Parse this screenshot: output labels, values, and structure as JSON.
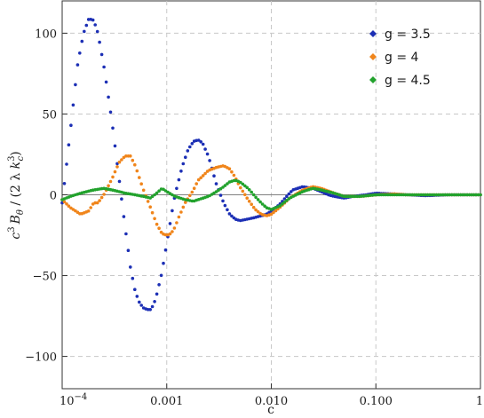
{
  "chart_data": {
    "type": "scatter",
    "xlabel": "c",
    "ylabel_parts": {
      "c": "c",
      "exp3": "3",
      "B": "B",
      "theta": "θ",
      "mid": " / (2 λ ",
      "k": "k",
      "kexp": "3",
      "ksub": "c",
      "close": ")"
    },
    "x_scale": "log",
    "xlim": [
      0.0001,
      1
    ],
    "ylim": [
      -120,
      120
    ],
    "x_ticks": [
      {
        "value": 0.0001,
        "label": "10",
        "sup": "−4"
      },
      {
        "value": 0.001,
        "label": "0.001"
      },
      {
        "value": 0.01,
        "label": "0.010"
      },
      {
        "value": 0.1,
        "label": "0.100"
      },
      {
        "value": 1,
        "label": "1"
      }
    ],
    "y_ticks": [
      {
        "value": 100,
        "label": "100"
      },
      {
        "value": 50,
        "label": "50"
      },
      {
        "value": 0,
        "label": "0"
      },
      {
        "value": -50,
        "label": "−50"
      },
      {
        "value": -100,
        "label": "−100"
      }
    ],
    "grid": "dashed",
    "legend_position": "top-right",
    "series": [
      {
        "name": "g = 3.5",
        "color": "#1c2fb5",
        "marker": "diamond",
        "x": [
          0.0001,
          0.00012,
          0.00014,
          0.00016,
          0.00018,
          0.0002,
          0.00022,
          0.00025,
          0.0003,
          0.00035,
          0.0004,
          0.00045,
          0.0005,
          0.00055,
          0.0006,
          0.00065,
          0.0007,
          0.00075,
          0.0008,
          0.0009,
          0.001,
          0.0011,
          0.0012,
          0.0014,
          0.0016,
          0.0018,
          0.002,
          0.0022,
          0.0025,
          0.0028,
          0.003,
          0.0035,
          0.004,
          0.0045,
          0.005,
          0.006,
          0.007,
          0.008,
          0.009,
          0.01,
          0.012,
          0.014,
          0.016,
          0.02,
          0.025,
          0.03,
          0.035,
          0.04,
          0.05,
          0.06,
          0.08,
          0.1,
          0.15,
          0.2,
          0.3,
          0.5,
          0.7,
          1.0
        ],
        "y": [
          -5,
          40,
          80,
          100,
          109,
          108,
          100,
          80,
          45,
          10,
          -20,
          -45,
          -60,
          -67,
          -70,
          -71,
          -71,
          -68,
          -62,
          -48,
          -30,
          -14,
          0,
          17,
          28,
          33,
          34,
          32,
          24,
          13,
          6,
          -5,
          -12,
          -15,
          -16,
          -15,
          -14,
          -13,
          -12,
          -10,
          -6,
          -1,
          3,
          5,
          4,
          2,
          0,
          -1,
          -2,
          -1,
          0,
          1,
          0.5,
          0,
          -0.5,
          0,
          0,
          0
        ]
      },
      {
        "name": "g = 4",
        "color": "#f0851b",
        "marker": "diamond",
        "x": [
          0.0001,
          0.00012,
          0.00015,
          0.00018,
          0.0002,
          0.00022,
          0.00025,
          0.0003,
          0.00035,
          0.0004,
          0.00045,
          0.0005,
          0.00055,
          0.0006,
          0.0007,
          0.0008,
          0.0009,
          0.001,
          0.0011,
          0.0012,
          0.0013,
          0.0015,
          0.0018,
          0.002,
          0.0025,
          0.003,
          0.0035,
          0.004,
          0.0045,
          0.005,
          0.006,
          0.007,
          0.008,
          0.009,
          0.01,
          0.012,
          0.015,
          0.02,
          0.025,
          0.03,
          0.04,
          0.05,
          0.07,
          0.1,
          0.15,
          0.2,
          0.3,
          0.5,
          1.0
        ],
        "y": [
          -3,
          -8,
          -12,
          -10,
          -5,
          -5,
          0,
          10,
          20,
          24,
          24,
          18,
          10,
          3,
          -8,
          -18,
          -24,
          -25,
          -24,
          -20,
          -14,
          -5,
          3,
          9,
          15,
          17,
          18,
          16,
          11,
          5,
          -3,
          -9,
          -12,
          -13,
          -12,
          -8,
          -2,
          3,
          5,
          4,
          1,
          -1,
          -1,
          0,
          0.5,
          0,
          0,
          0,
          0
        ]
      },
      {
        "name": "g = 4.5",
        "color": "#22a22d",
        "marker": "diamond",
        "x": [
          0.0001,
          0.00012,
          0.00015,
          0.0002,
          0.00025,
          0.0003,
          0.00035,
          0.0004,
          0.0005,
          0.0006,
          0.0007,
          0.0008,
          0.0009,
          0.001,
          0.0012,
          0.0015,
          0.0018,
          0.002,
          0.0025,
          0.003,
          0.0035,
          0.004,
          0.0045,
          0.005,
          0.006,
          0.007,
          0.008,
          0.009,
          0.01,
          0.012,
          0.015,
          0.02,
          0.025,
          0.03,
          0.04,
          0.05,
          0.07,
          0.1,
          0.15,
          0.2,
          0.3,
          0.5,
          1.0
        ],
        "y": [
          -3,
          -1,
          1,
          3,
          4,
          3,
          2,
          1,
          0,
          -1,
          -2,
          1,
          4,
          2,
          -1,
          -3,
          -4,
          -3,
          -1,
          2,
          5,
          8,
          9,
          8,
          4,
          -1,
          -5,
          -8,
          -9,
          -7,
          -2,
          2,
          4,
          3,
          1,
          -1,
          -1,
          0,
          0,
          0,
          0,
          0,
          0
        ]
      }
    ]
  }
}
